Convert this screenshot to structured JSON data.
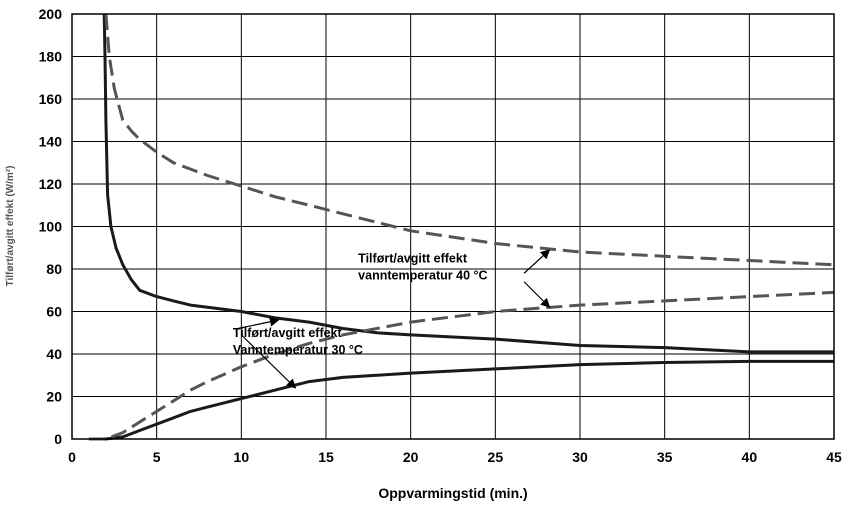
{
  "chart_data": {
    "type": "line",
    "title": "",
    "xlabel": "Oppvarmingstid (min.)",
    "ylabel": "Tilført/avgitt effekt (W/m²)",
    "xlim": [
      0,
      45
    ],
    "ylim": [
      0,
      200
    ],
    "xticks": [
      0,
      5,
      10,
      15,
      20,
      25,
      30,
      35,
      40,
      45
    ],
    "yticks": [
      0,
      20,
      40,
      60,
      80,
      100,
      120,
      140,
      160,
      180,
      200
    ],
    "grid": true,
    "legend": "none",
    "series": [
      {
        "style": "solid",
        "color": "#1a1a1a",
        "x": [
          1.9,
          1.95,
          2.0,
          2.1,
          2.3,
          2.6,
          3.0,
          3.5,
          4,
          5,
          6,
          7,
          8,
          10,
          12,
          14,
          16,
          18,
          20,
          25,
          30,
          35,
          40,
          45
        ],
        "y": [
          200,
          180,
          150,
          115,
          100,
          90,
          82,
          75,
          70,
          67,
          65,
          63,
          62,
          60,
          57,
          55,
          52,
          50,
          49,
          47,
          44,
          43,
          41,
          41
        ]
      },
      {
        "style": "dashed",
        "color": "#555555",
        "x": [
          2.0,
          2.2,
          2.5,
          3.0,
          3.5,
          4,
          5,
          6,
          7,
          8,
          10,
          12,
          14,
          16,
          18,
          20,
          25,
          30,
          35,
          40,
          45
        ],
        "y": [
          200,
          180,
          165,
          150,
          145,
          141,
          135,
          130,
          127,
          124,
          119,
          114,
          110,
          106,
          102,
          98,
          92,
          88,
          86,
          84,
          82
        ]
      },
      {
        "style": "solid",
        "color": "#1a1a1a",
        "x": [
          1,
          2,
          3,
          4,
          5,
          6,
          7,
          8,
          10,
          12,
          14,
          16,
          18,
          20,
          25,
          30,
          35,
          40,
          45
        ],
        "y": [
          0,
          0,
          1,
          4,
          7,
          10,
          13,
          15,
          19,
          23,
          27,
          29,
          30,
          31,
          33,
          35,
          36,
          36.5,
          36.5
        ]
      },
      {
        "style": "dashed",
        "color": "#555555",
        "x": [
          1,
          2,
          3,
          4,
          5,
          6,
          7,
          8,
          10,
          12,
          14,
          16,
          18,
          20,
          25,
          30,
          35,
          40,
          45
        ],
        "y": [
          0,
          0,
          3,
          8,
          13,
          18,
          23,
          27,
          34,
          40,
          45,
          49,
          52,
          55,
          60,
          63,
          65,
          67,
          69
        ]
      }
    ],
    "annotations": [
      {
        "lines": [
          "Tilført/avgitt effekt",
          "vanntemperatur 40 °C"
        ],
        "anchor": [
          16.9,
          83
        ],
        "arrows_to": [
          [
            28.2,
            89
          ],
          [
            28.2,
            62
          ]
        ]
      },
      {
        "lines": [
          "Tilført/avgitt effekt",
          "Vanntemperatur 30 °C"
        ],
        "anchor": [
          9.5,
          48
        ],
        "arrows_to": [
          [
            12.2,
            56
          ],
          [
            13.2,
            24
          ]
        ]
      }
    ]
  }
}
